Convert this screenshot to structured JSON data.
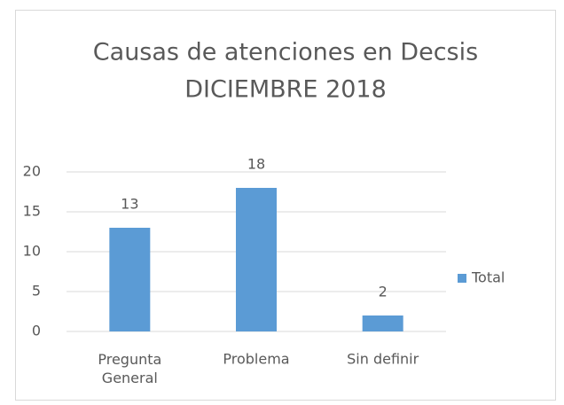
{
  "chart_data": {
    "type": "bar",
    "title": "Causas de atenciones en Decsis",
    "subtitle": "DICIEMBRE 2018",
    "categories": [
      "Pregunta General",
      "Problema",
      "Sin definir"
    ],
    "series": [
      {
        "name": "Total",
        "color": "#5b9bd5",
        "values": [
          13,
          18,
          2
        ]
      }
    ],
    "ylim": [
      0,
      20
    ],
    "yticks": [
      0,
      5,
      10,
      15,
      20
    ],
    "grid": true,
    "legend": "right"
  }
}
